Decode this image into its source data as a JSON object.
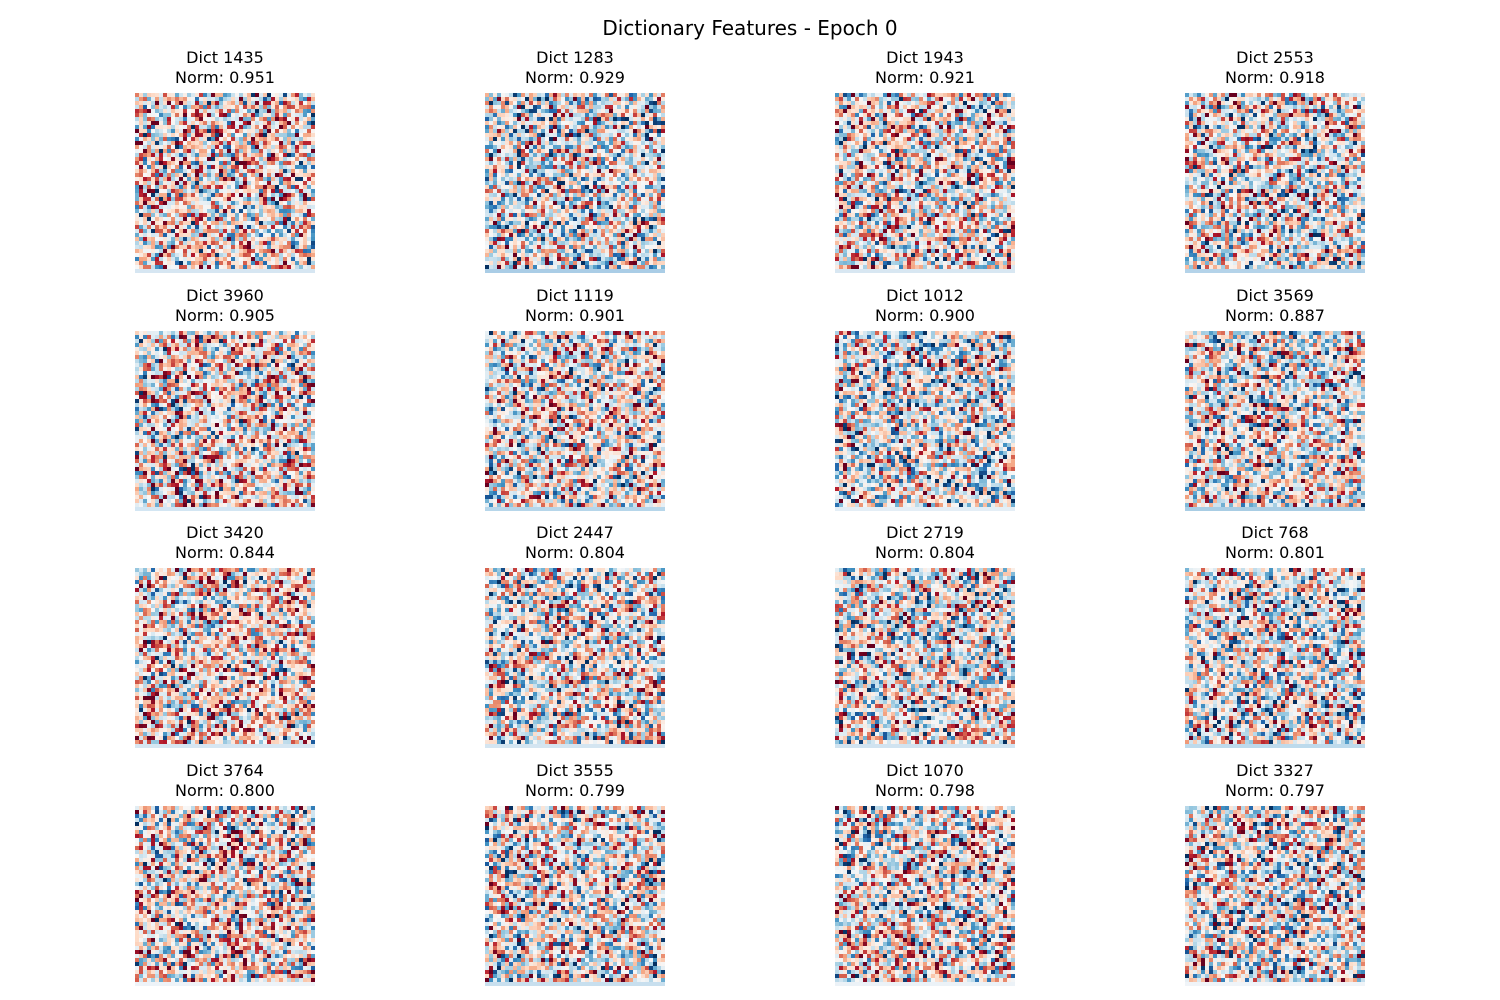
{
  "title": "Dictionary Features - Epoch 0",
  "chart_data": {
    "type": "heatmap",
    "title": "Dictionary Features - Epoch 0",
    "layout": {
      "rows": 4,
      "columns": 4
    },
    "colormap": "RdBu_r",
    "image_grid": {
      "rows": 45,
      "columns": 45,
      "last_row_padding": true
    },
    "panels": [
      {
        "dict_label": "Dict 1435",
        "norm_label": "Norm: 0.951",
        "dict_id": 1435,
        "norm": 0.951,
        "padding_color": "#d6e6f2"
      },
      {
        "dict_label": "Dict 1283",
        "norm_label": "Norm: 0.929",
        "dict_id": 1283,
        "norm": 0.929,
        "padding_color": "#aacde6"
      },
      {
        "dict_label": "Dict 1943",
        "norm_label": "Norm: 0.921",
        "dict_id": 1943,
        "norm": 0.921,
        "padding_color": "#d8e7f2"
      },
      {
        "dict_label": "Dict 2553",
        "norm_label": "Norm: 0.918",
        "dict_id": 2553,
        "norm": 0.918,
        "padding_color": "#b4d3e9"
      },
      {
        "dict_label": "Dict 3960",
        "norm_label": "Norm: 0.905",
        "dict_id": 3960,
        "norm": 0.905,
        "padding_color": "#d3e6f3"
      },
      {
        "dict_label": "Dict 1119",
        "norm_label": "Norm: 0.901",
        "dict_id": 1119,
        "norm": 0.901,
        "padding_color": "#b6d6ea"
      },
      {
        "dict_label": "Dict 1012",
        "norm_label": "Norm: 0.900",
        "dict_id": 1012,
        "norm": 0.9,
        "padding_color": "#e4eef6"
      },
      {
        "dict_label": "Dict 3569",
        "norm_label": "Norm: 0.887",
        "dict_id": 3569,
        "norm": 0.887,
        "padding_color": "#a8cde4"
      },
      {
        "dict_label": "Dict 3420",
        "norm_label": "Norm: 0.844",
        "dict_id": 3420,
        "norm": 0.844,
        "padding_color": "#d6e6f2"
      },
      {
        "dict_label": "Dict 2447",
        "norm_label": "Norm: 0.804",
        "dict_id": 2447,
        "norm": 0.804,
        "padding_color": "#d4e5f1"
      },
      {
        "dict_label": "Dict 2719",
        "norm_label": "Norm: 0.804",
        "dict_id": 2719,
        "norm": 0.804,
        "padding_color": "#d1e3f0"
      },
      {
        "dict_label": "Dict 768",
        "norm_label": "Norm: 0.801",
        "dict_id": 768,
        "norm": 0.801,
        "padding_color": "#bddaec"
      },
      {
        "dict_label": "Dict 3764",
        "norm_label": "Norm: 0.800",
        "dict_id": 3764,
        "norm": 0.8,
        "padding_color": "#eef3f8"
      },
      {
        "dict_label": "Dict 3555",
        "norm_label": "Norm: 0.799",
        "dict_id": 3555,
        "norm": 0.799,
        "padding_color": "#c8dfee"
      },
      {
        "dict_label": "Dict 1070",
        "norm_label": "Norm: 0.798",
        "dict_id": 1070,
        "norm": 0.798,
        "padding_color": "#ecf2f7"
      },
      {
        "dict_label": "Dict 3327",
        "norm_label": "Norm: 0.797",
        "dict_id": 3327,
        "norm": 0.797,
        "padding_color": "#f0f4f8"
      }
    ]
  }
}
